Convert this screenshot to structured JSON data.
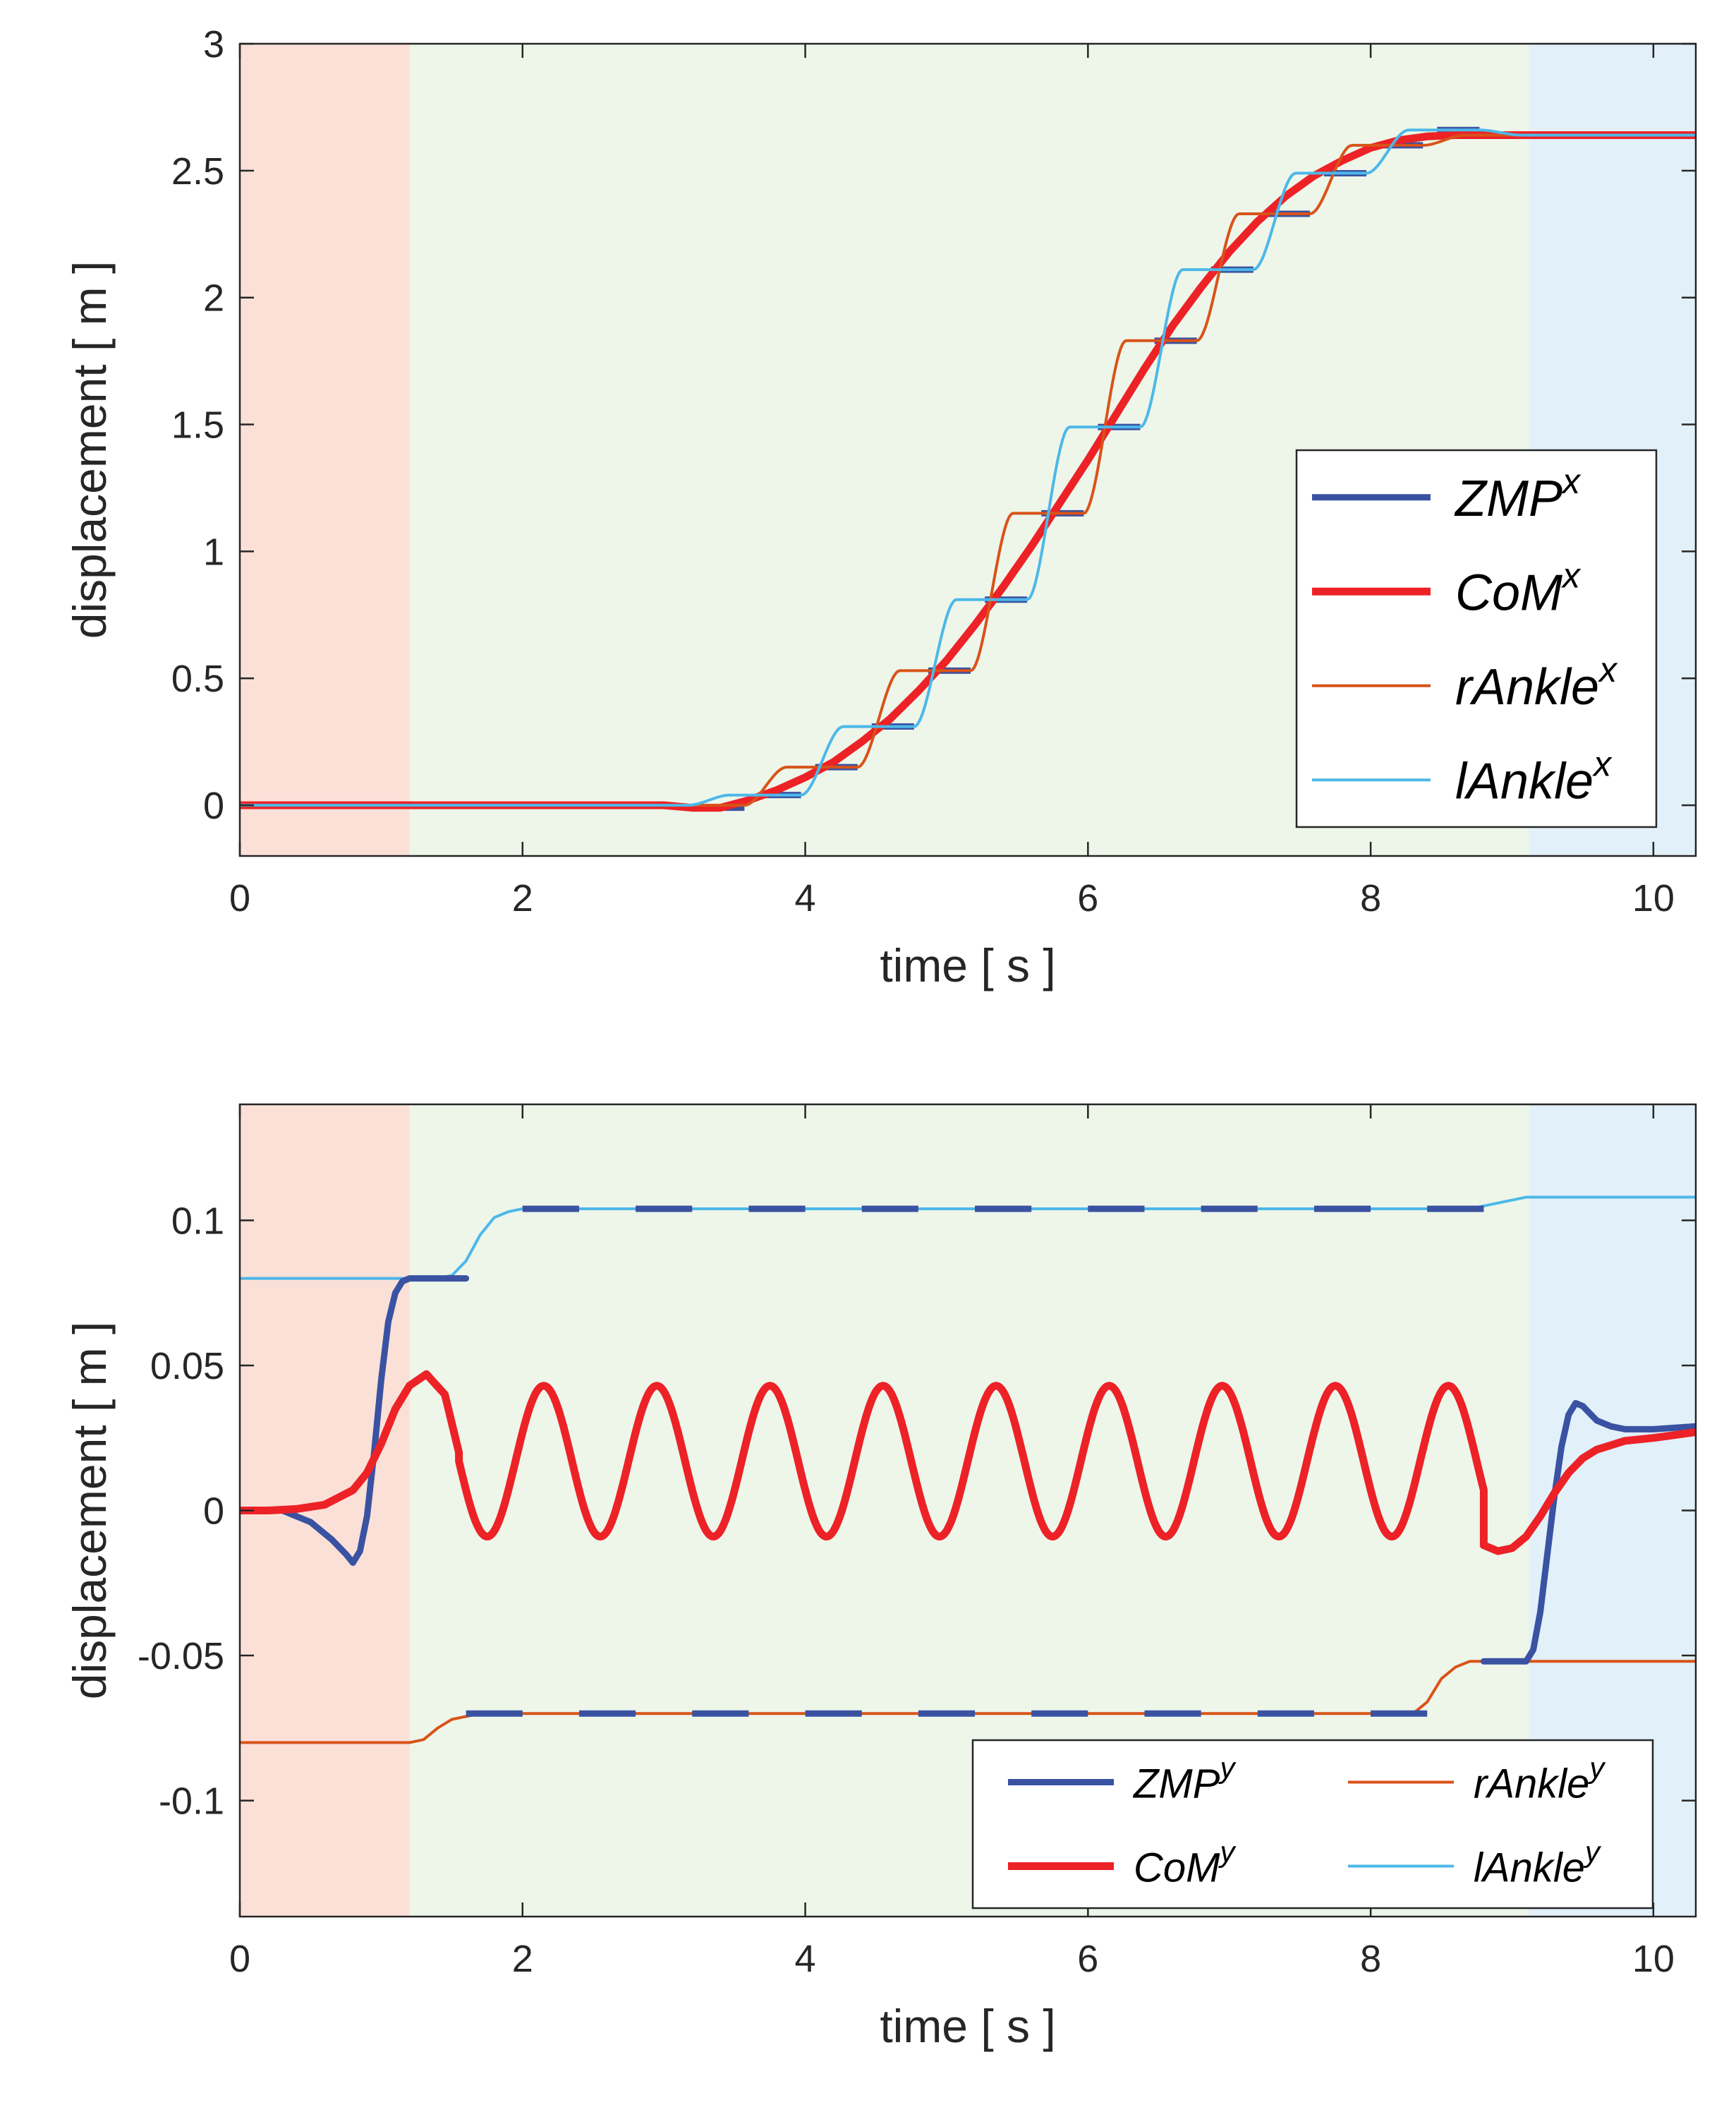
{
  "colors": {
    "zmp": "#3a52a2",
    "com": "#ec2227",
    "rankle": "#d95319",
    "lankle": "#4db8e8",
    "phase_start": "#fbe0d8",
    "phase_walk": "#eef6ea",
    "phase_end": "#e2f0f9",
    "axis": "#262626"
  },
  "chart_data": [
    {
      "type": "line",
      "title": "",
      "xlabel": "time [ s ]",
      "ylabel": "displacement [ m ]",
      "xlim": [
        0,
        10.3
      ],
      "ylim": [
        -0.2,
        3
      ],
      "xticks": [
        0,
        2,
        4,
        6,
        8,
        10
      ],
      "xtick_labels": [
        "0",
        "2",
        "4",
        "6",
        "8",
        "10"
      ],
      "yticks": [
        0,
        0.5,
        1,
        1.5,
        2,
        2.5,
        3
      ],
      "ytick_labels": [
        "0",
        "0.5",
        "1",
        "1.5",
        "2",
        "2.5",
        "3"
      ],
      "phases": [
        {
          "name": "start",
          "x0": 0,
          "x1": 1.2
        },
        {
          "name": "walk",
          "x0": 1.2,
          "x1": 9.12
        },
        {
          "name": "end",
          "x0": 9.12,
          "x1": 10.3
        }
      ],
      "legend": {
        "position": "lower-right",
        "entries": [
          {
            "key": "zmp",
            "base": "ZMP",
            "sup": "x"
          },
          {
            "key": "com",
            "base": "CoM",
            "sup": "x"
          },
          {
            "key": "rankle",
            "base": "rAnkle",
            "sup": "x"
          },
          {
            "key": "lankle",
            "base": "lAnkle",
            "sup": "x"
          }
        ]
      },
      "series": [
        {
          "key": "zmp",
          "name": "ZMP^x",
          "style": "dashed",
          "segments": [
            [
              3.27,
              3.57,
              -0.01
            ],
            [
              3.67,
              3.97,
              0.04
            ],
            [
              4.07,
              4.37,
              0.15
            ],
            [
              4.47,
              4.77,
              0.31
            ],
            [
              4.87,
              5.17,
              0.53
            ],
            [
              5.27,
              5.57,
              0.81
            ],
            [
              5.67,
              5.97,
              1.15
            ],
            [
              6.07,
              6.37,
              1.49
            ],
            [
              6.47,
              6.77,
              1.83
            ],
            [
              6.87,
              7.17,
              2.11
            ],
            [
              7.27,
              7.57,
              2.33
            ],
            [
              7.67,
              7.97,
              2.49
            ],
            [
              8.07,
              8.37,
              2.6
            ],
            [
              8.47,
              8.77,
              2.66
            ]
          ]
        },
        {
          "key": "com",
          "name": "CoM^x",
          "x": [
            0,
            2.6,
            3.0,
            3.2,
            3.4,
            3.6,
            3.8,
            4.0,
            4.2,
            4.4,
            4.6,
            4.8,
            5.0,
            5.2,
            5.4,
            5.6,
            5.8,
            6.0,
            6.2,
            6.4,
            6.6,
            6.8,
            7.0,
            7.2,
            7.4,
            7.6,
            7.8,
            8.0,
            8.2,
            8.4,
            8.6,
            8.8,
            9.0,
            10.3
          ],
          "y": [
            0,
            0,
            0,
            -0.01,
            -0.01,
            0.02,
            0.06,
            0.11,
            0.17,
            0.25,
            0.34,
            0.45,
            0.57,
            0.71,
            0.86,
            1.02,
            1.19,
            1.36,
            1.54,
            1.72,
            1.89,
            2.04,
            2.18,
            2.3,
            2.4,
            2.48,
            2.54,
            2.59,
            2.62,
            2.635,
            2.64,
            2.64,
            2.64,
            2.64
          ]
        },
        {
          "key": "rankle",
          "name": "rAnkle^x",
          "steps": [
            [
              3.57,
              3.87,
              0.0,
              0.15
            ],
            [
              4.37,
              4.67,
              0.15,
              0.53
            ],
            [
              5.17,
              5.47,
              0.53,
              1.15
            ],
            [
              5.97,
              6.27,
              1.15,
              1.83
            ],
            [
              6.77,
              7.07,
              1.83,
              2.33
            ],
            [
              7.57,
              7.87,
              2.33,
              2.6
            ],
            [
              8.37,
              8.67,
              2.6,
              2.64
            ]
          ],
          "start": 0
        },
        {
          "key": "lankle",
          "name": "lAnkle^x",
          "steps": [
            [
              3.17,
              3.47,
              0.0,
              0.04
            ],
            [
              3.97,
              4.27,
              0.04,
              0.31
            ],
            [
              4.77,
              5.07,
              0.31,
              0.81
            ],
            [
              5.57,
              5.87,
              0.81,
              1.49
            ],
            [
              6.37,
              6.67,
              1.49,
              2.11
            ],
            [
              7.17,
              7.47,
              2.11,
              2.49
            ],
            [
              7.97,
              8.27,
              2.49,
              2.66
            ],
            [
              8.77,
              9.07,
              2.66,
              2.64
            ]
          ],
          "start": 0
        }
      ]
    },
    {
      "type": "line",
      "title": "",
      "xlabel": "time [ s ]",
      "ylabel": "displacement [ m ]",
      "xlim": [
        0,
        10.3
      ],
      "ylim": [
        -0.14,
        0.14
      ],
      "xticks": [
        0,
        2,
        4,
        6,
        8,
        10
      ],
      "xtick_labels": [
        "0",
        "2",
        "4",
        "6",
        "8",
        "10"
      ],
      "yticks": [
        -0.1,
        -0.05,
        0,
        0.05,
        0.1
      ],
      "ytick_labels": [
        "-0.1",
        "-0.05",
        "0",
        "0.05",
        "0.1"
      ],
      "phases": [
        {
          "name": "start",
          "x0": 0,
          "x1": 1.2
        },
        {
          "name": "walk",
          "x0": 1.2,
          "x1": 9.12
        },
        {
          "name": "end",
          "x0": 9.12,
          "x1": 10.3
        }
      ],
      "legend": {
        "position": "lower-right",
        "entries": [
          {
            "key": "zmp",
            "base": "ZMP",
            "sup": "y"
          },
          {
            "key": "rankle",
            "base": "rAnkle",
            "sup": "y"
          },
          {
            "key": "com",
            "base": "CoM",
            "sup": "y"
          },
          {
            "key": "lankle",
            "base": "lAnkle",
            "sup": "y"
          }
        ]
      },
      "series": [
        {
          "key": "lankle",
          "name": "lAnkle^y",
          "x": [
            0,
            1.4,
            1.5,
            1.6,
            1.7,
            1.8,
            1.9,
            2.0,
            8.7,
            8.8,
            8.9,
            9.0,
            9.1,
            10.3
          ],
          "y": [
            0.08,
            0.08,
            0.081,
            0.086,
            0.095,
            0.101,
            0.103,
            0.104,
            0.104,
            0.105,
            0.106,
            0.107,
            0.108,
            0.108
          ]
        },
        {
          "key": "rankle",
          "name": "rAnkle^y",
          "x": [
            0,
            1.2,
            1.3,
            1.4,
            1.5,
            1.6,
            1.7,
            8.3,
            8.4,
            8.5,
            8.6,
            8.7,
            8.8,
            10.3
          ],
          "y": [
            -0.08,
            -0.08,
            -0.079,
            -0.075,
            -0.072,
            -0.071,
            -0.07,
            -0.07,
            -0.066,
            -0.058,
            -0.054,
            -0.052,
            -0.052,
            -0.052
          ]
        },
        {
          "key": "zmp",
          "name": "ZMP^y",
          "x": [
            0,
            0.3,
            0.5,
            0.65,
            0.75,
            0.8,
            0.85,
            0.9,
            0.95,
            1.0,
            1.05,
            1.1,
            1.15,
            1.2,
            1.6,
            null,
            8.8,
            9.1,
            9.15,
            9.2,
            9.25,
            9.3,
            9.35,
            9.4,
            9.45,
            9.5,
            9.6,
            9.7,
            9.8,
            10.0,
            10.3
          ],
          "y": [
            0,
            0,
            -0.004,
            -0.01,
            -0.015,
            -0.018,
            -0.014,
            -0.002,
            0.02,
            0.045,
            0.065,
            0.075,
            0.079,
            0.08,
            0.08,
            null,
            -0.052,
            -0.052,
            -0.048,
            -0.035,
            -0.015,
            0.005,
            0.022,
            0.033,
            0.037,
            0.036,
            0.031,
            0.029,
            0.028,
            0.028,
            0.029
          ]
        },
        {
          "key": "zmp",
          "name": "ZMP^y dashes",
          "style": "dashed",
          "segments": [
            [
              2.0,
              2.4,
              0.104
            ],
            [
              2.8,
              3.2,
              0.104
            ],
            [
              3.6,
              4.0,
              0.104
            ],
            [
              4.4,
              4.8,
              0.104
            ],
            [
              5.2,
              5.6,
              0.104
            ],
            [
              6.0,
              6.4,
              0.104
            ],
            [
              6.8,
              7.2,
              0.104
            ],
            [
              7.6,
              8.0,
              0.104
            ],
            [
              8.4,
              8.8,
              0.104
            ],
            [
              1.6,
              2.0,
              -0.07
            ],
            [
              2.4,
              2.8,
              -0.07
            ],
            [
              3.2,
              3.6,
              -0.07
            ],
            [
              4.0,
              4.4,
              -0.07
            ],
            [
              4.8,
              5.2,
              -0.07
            ],
            [
              5.6,
              6.0,
              -0.07
            ],
            [
              6.4,
              6.8,
              -0.07
            ],
            [
              7.2,
              7.6,
              -0.07
            ],
            [
              8.0,
              8.4,
              -0.07
            ]
          ]
        },
        {
          "key": "com",
          "name": "CoM^y",
          "x": [
            0,
            0.2,
            0.4,
            0.6,
            0.8,
            0.9,
            1.0,
            1.1,
            1.2,
            1.32,
            1.45,
            1.55,
            1.6,
            8.8,
            8.9,
            9.0,
            9.1,
            9.2,
            9.3,
            9.4,
            9.5,
            9.6,
            9.8,
            10.0,
            10.3
          ],
          "y": [
            0,
            0,
            0.0005,
            0.002,
            0.007,
            0.013,
            0.023,
            0.035,
            0.043,
            0.047,
            0.04,
            0.02,
            0.005,
            -0.012,
            -0.014,
            -0.013,
            -0.009,
            -0.002,
            0.006,
            0.013,
            0.018,
            0.021,
            0.024,
            0.025,
            0.027
          ],
          "oscillation": {
            "x0": 1.55,
            "x1": 8.8,
            "period": 0.8,
            "min": -0.009,
            "max": 0.043,
            "phase_x_peak": 2.15
          }
        }
      ]
    }
  ]
}
